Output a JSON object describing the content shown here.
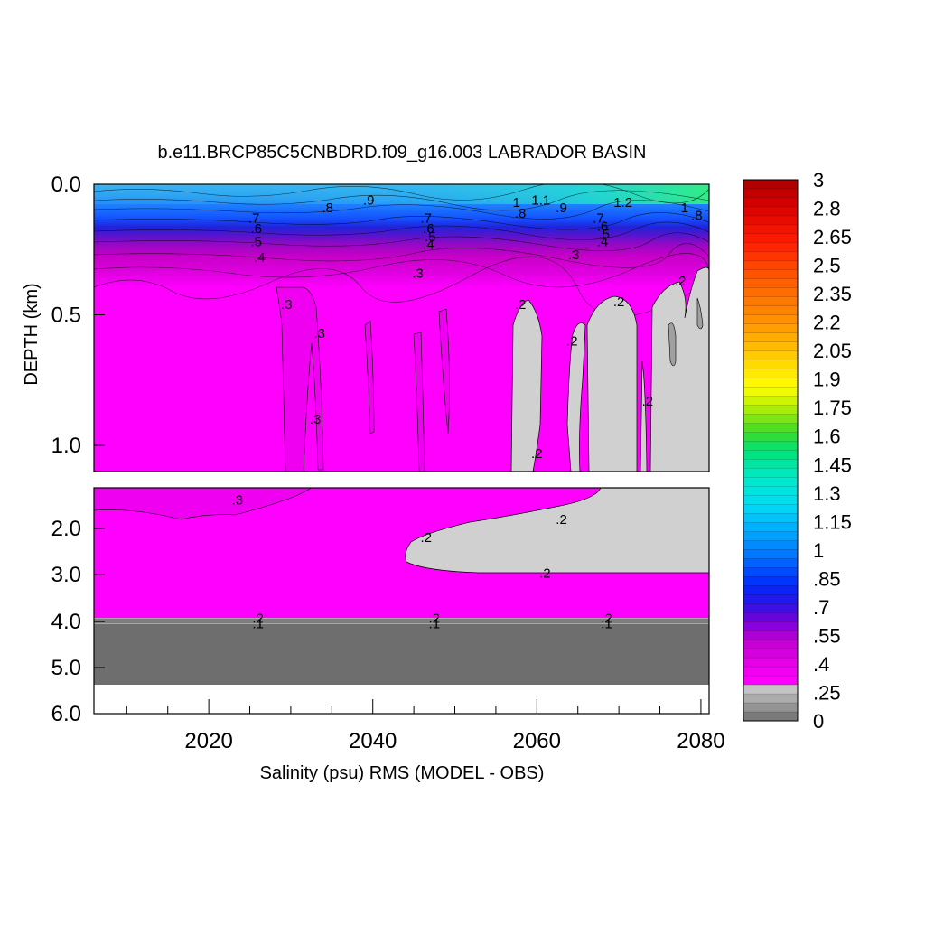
{
  "chart_data": {
    "type": "heatmap",
    "title": "b.e11.BRCP85C5CNBDRD.f09_g16.003 LABRADOR BASIN",
    "xlabel": "Salinity (psu) RMS (MODEL - OBS)",
    "ylabel": "DEPTH (km)",
    "xlim": [
      2006,
      2081
    ],
    "x_ticks": [
      "2020",
      "2040",
      "2060",
      "2080"
    ],
    "upper_panel": {
      "ylim": [
        0.0,
        1.1
      ],
      "y_ticks": [
        "0.0",
        "0.5",
        "1.0"
      ]
    },
    "lower_panel": {
      "ylim": [
        1.1,
        6.0
      ],
      "y_ticks": [
        "2.0",
        "3.0",
        "4.0",
        "5.0",
        "6.0"
      ]
    },
    "colorbar": {
      "labels": [
        "3",
        "2.8",
        "2.65",
        "2.5",
        "2.35",
        "2.2",
        "2.05",
        "1.9",
        "1.75",
        "1.6",
        "1.45",
        "1.3",
        "1.15",
        "1",
        ".85",
        ".7",
        ".55",
        ".4",
        ".25",
        "0"
      ],
      "top_color": "#b00000",
      "bottom_color": "#6e6e6e"
    },
    "colors": {
      "magenta": "#ff00ff",
      "gray_region": "#d0d0d0",
      "dark_gray_bottom": "#6e6e6e",
      "blue_layer": "#1e60ff",
      "cyan_surface": "#20c8f0"
    },
    "contour_labels": [
      {
        "text": ".9",
        "year": 2039.5,
        "depth": 0.06
      },
      {
        "text": ".8",
        "year": 2034.5,
        "depth": 0.09
      },
      {
        "text": "1",
        "year": 2057.5,
        "depth": 0.07
      },
      {
        "text": "1.1",
        "year": 2060.5,
        "depth": 0.06
      },
      {
        "text": ".9",
        "year": 2063,
        "depth": 0.09
      },
      {
        "text": ".8",
        "year": 2058,
        "depth": 0.11
      },
      {
        "text": "1.2",
        "year": 2070.5,
        "depth": 0.07
      },
      {
        "text": "1",
        "year": 2078,
        "depth": 0.09
      },
      {
        "text": ".8",
        "year": 2079.5,
        "depth": 0.12
      },
      {
        "text": ".7",
        "year": 2025.5,
        "depth": 0.13
      },
      {
        "text": ".6",
        "year": 2025.8,
        "depth": 0.17
      },
      {
        "text": ".5",
        "year": 2025.8,
        "depth": 0.22
      },
      {
        "text": ".4",
        "year": 2026.2,
        "depth": 0.28
      },
      {
        "text": ".7",
        "year": 2046.5,
        "depth": 0.13
      },
      {
        "text": ".6",
        "year": 2046.8,
        "depth": 0.17
      },
      {
        "text": ".5",
        "year": 2047,
        "depth": 0.2
      },
      {
        "text": ".4",
        "year": 2046.8,
        "depth": 0.23
      },
      {
        "text": ".7",
        "year": 2067.5,
        "depth": 0.13
      },
      {
        "text": ".6",
        "year": 2068,
        "depth": 0.16
      },
      {
        "text": ".5",
        "year": 2068.2,
        "depth": 0.19
      },
      {
        "text": ".4",
        "year": 2068,
        "depth": 0.22
      },
      {
        "text": ".3",
        "year": 2045.5,
        "depth": 0.34
      },
      {
        "text": ".3",
        "year": 2064.5,
        "depth": 0.27
      },
      {
        "text": ".3",
        "year": 2029.5,
        "depth": 0.46
      },
      {
        "text": ".3",
        "year": 2033.5,
        "depth": 0.57
      },
      {
        "text": ".3",
        "year": 2033,
        "depth": 0.9
      },
      {
        "text": ".2",
        "year": 2058,
        "depth": 0.46
      },
      {
        "text": ".2",
        "year": 2070,
        "depth": 0.45
      },
      {
        "text": ".2",
        "year": 2064.3,
        "depth": 0.6
      },
      {
        "text": ".2",
        "year": 2073.5,
        "depth": 0.83
      },
      {
        "text": ".2",
        "year": 2060,
        "depth": 1.03
      },
      {
        "text": ".2",
        "year": 2077.5,
        "depth": 0.37
      },
      {
        "text": ".3",
        "year": 2023.5,
        "depth": 1.37
      },
      {
        "text": ".2",
        "year": 2063,
        "depth": 1.8
      },
      {
        "text": ".2",
        "year": 2046.5,
        "depth": 2.2
      },
      {
        "text": ".2",
        "year": 2061,
        "depth": 2.97
      },
      {
        "text": ".2",
        "year": 2026,
        "depth": 3.93
      },
      {
        "text": ".1",
        "year": 2026,
        "depth": 4.05
      },
      {
        "text": ".2",
        "year": 2047.5,
        "depth": 3.93
      },
      {
        "text": ".1",
        "year": 2047.5,
        "depth": 4.05
      },
      {
        "text": ".2",
        "year": 2068.5,
        "depth": 3.93
      },
      {
        "text": ".1",
        "year": 2068.5,
        "depth": 4.05
      }
    ]
  }
}
